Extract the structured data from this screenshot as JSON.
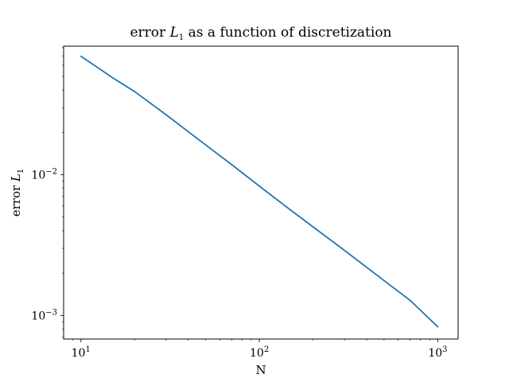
{
  "chart_data": {
    "type": "line",
    "title": {
      "prefix": "error ",
      "var": "L",
      "sub": "1",
      "suffix": " as a function of discretization"
    },
    "xlabel": "N",
    "ylabel": {
      "prefix": "error ",
      "var": "L",
      "sub": "1"
    },
    "xscale": "log",
    "yscale": "log",
    "xlim": [
      8,
      1300
    ],
    "ylim": [
      0.00068,
      0.082
    ],
    "x_ticks": [
      {
        "value": 10,
        "base": "10",
        "exp": "1"
      },
      {
        "value": 100,
        "base": "10",
        "exp": "2"
      },
      {
        "value": 1000,
        "base": "10",
        "exp": "3"
      }
    ],
    "y_ticks": [
      {
        "value": 0.01,
        "base": "10",
        "exp": "−2"
      },
      {
        "value": 0.001,
        "base": "10",
        "exp": "−3"
      }
    ],
    "grid": false,
    "legend": "none",
    "series": [
      {
        "color": "#1f77b4",
        "x": [
          10,
          12,
          15,
          20,
          30,
          50,
          70,
          100,
          150,
          200,
          300,
          500,
          700,
          1000
        ],
        "y": [
          0.0695,
          0.0595,
          0.049,
          0.039,
          0.0267,
          0.0163,
          0.0118,
          0.0083,
          0.0056,
          0.00426,
          0.0029,
          0.00177,
          0.00128,
          0.00083
        ]
      }
    ]
  }
}
